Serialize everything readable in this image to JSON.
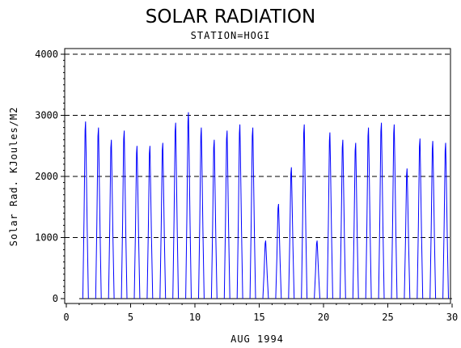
{
  "chart_data": {
    "type": "line",
    "title": "SOLAR RADIATION",
    "subtitle": "STATION=HOGI",
    "xlabel": "AUG 1994",
    "ylabel": "Solar Rad. KJoules/M2",
    "xlim": [
      0,
      30
    ],
    "ylim": [
      0,
      4000
    ],
    "x_ticks": [
      0,
      5,
      10,
      15,
      20,
      25,
      30
    ],
    "y_ticks": [
      0,
      1000,
      2000,
      3000,
      4000
    ],
    "grid": "dashed horizontal at y ticks",
    "series": [
      {
        "color": "#0000ff",
        "daily_peaks": [
          {
            "x": 1.5,
            "y": 2900
          },
          {
            "x": 2.5,
            "y": 2800
          },
          {
            "x": 3.5,
            "y": 2600
          },
          {
            "x": 4.5,
            "y": 2750
          },
          {
            "x": 5.5,
            "y": 2500
          },
          {
            "x": 6.5,
            "y": 2500
          },
          {
            "x": 7.5,
            "y": 2550
          },
          {
            "x": 8.5,
            "y": 2880
          },
          {
            "x": 9.5,
            "y": 3050
          },
          {
            "x": 10.5,
            "y": 2800
          },
          {
            "x": 11.5,
            "y": 2600
          },
          {
            "x": 12.5,
            "y": 2750
          },
          {
            "x": 13.5,
            "y": 2850
          },
          {
            "x": 14.5,
            "y": 2800
          },
          {
            "x": 15.5,
            "y": 950
          },
          {
            "x": 16.5,
            "y": 1550
          },
          {
            "x": 17.5,
            "y": 2150
          },
          {
            "x": 18.5,
            "y": 2850
          },
          {
            "x": 19.5,
            "y": 950
          },
          {
            "x": 20.5,
            "y": 2720
          },
          {
            "x": 21.5,
            "y": 2600
          },
          {
            "x": 22.5,
            "y": 2550
          },
          {
            "x": 23.5,
            "y": 2800
          },
          {
            "x": 24.5,
            "y": 2880
          },
          {
            "x": 25.5,
            "y": 2850
          },
          {
            "x": 26.5,
            "y": 2130
          },
          {
            "x": 27.5,
            "y": 2620
          },
          {
            "x": 28.5,
            "y": 2580
          },
          {
            "x": 29.5,
            "y": 2550
          }
        ]
      },
      {
        "color": "#000000",
        "values_note": "",
        "y": 0
      }
    ]
  }
}
